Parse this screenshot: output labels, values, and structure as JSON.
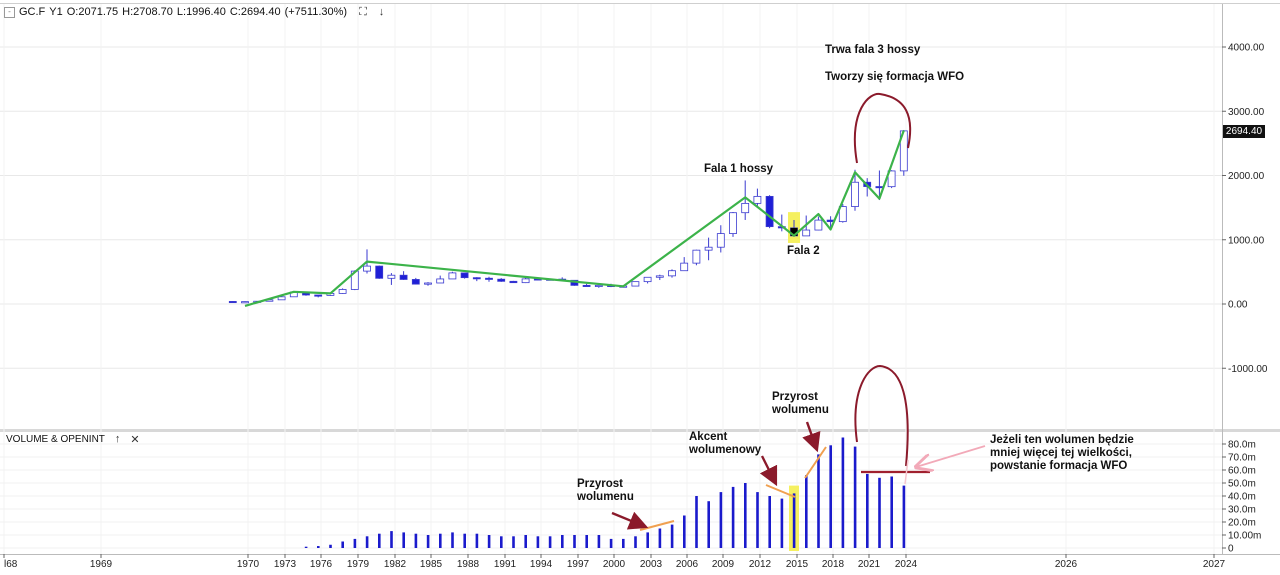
{
  "header": {
    "collapse_glyph": "-",
    "symbol": "GC.F",
    "interval": "Y1",
    "open": "O:2071.75",
    "high": "H:2708.70",
    "low": "L:1996.40",
    "close": "C:2694.40",
    "change": "(+7511.30%)",
    "expand_icon": "⛶",
    "menu_icon": "↓"
  },
  "volume_header": {
    "title": "VOLUME & OPENINT",
    "up_icon": "↑",
    "close_icon": "✕"
  },
  "annotations": {
    "wave3": "Trwa fala 3 hossy",
    "wfo": "Tworzy się formacja WFO",
    "wave1": "Fala 1 hossy",
    "wave2": "Fala 2",
    "vol_growth_1_l1": "Przyrost",
    "vol_growth_1_l2": "wolumenu",
    "vol_accent_l1": "Akcent",
    "vol_accent_l2": "wolumenowy",
    "vol_growth_2_l1": "Przyrost",
    "vol_growth_2_l2": "wolumenu",
    "condition_l1": "Jeżeli ten wolumen będzie",
    "condition_l2": "mniej więcej tej wielkości,",
    "condition_l3": "powstanie formacja WFO"
  },
  "last_price_label": "2694.40",
  "colors": {
    "up_candle": "#ffffff",
    "down_candle": "#1f1fd6",
    "candle_outline": "#3a3ad0",
    "volume_bar": "#1a1acc",
    "wave_line": "#3cb34a",
    "arc": "#8b1a2b",
    "arrow": "#8b1a2b",
    "trend_orange": "#f0a050",
    "highlight": "#f5f060",
    "pink_arrow": "#f2a9b8",
    "grid": "#e8e8e8",
    "axis_text": "#222222"
  },
  "chart_data": [
    {
      "type": "candlestick",
      "title": "GC.F Y1",
      "x_tick_labels": [
        "l68",
        "1969",
        "1970",
        "1973",
        "1976",
        "1979",
        "1982",
        "1985",
        "1988",
        "1991",
        "1994",
        "1997",
        "2000",
        "2003",
        "2006",
        "2009",
        "2012",
        "2015",
        "2018",
        "2021",
        "2024",
        "2026",
        "2027"
      ],
      "y_tick_labels": [
        "4000.00",
        "3000.00",
        "2000.00",
        "1000.00",
        "0.00",
        "-1000.00"
      ],
      "ylim": [
        -1300,
        4300
      ],
      "grid": true,
      "candles": [
        {
          "year": 1969,
          "o": 40,
          "h": 45,
          "l": 35,
          "c": 37
        },
        {
          "year": 1970,
          "o": 37,
          "h": 40,
          "l": 34,
          "c": 37
        },
        {
          "year": 1971,
          "o": 37,
          "h": 44,
          "l": 37,
          "c": 43
        },
        {
          "year": 1972,
          "o": 43,
          "h": 70,
          "l": 43,
          "c": 65
        },
        {
          "year": 1973,
          "o": 65,
          "h": 127,
          "l": 64,
          "c": 112
        },
        {
          "year": 1974,
          "o": 112,
          "h": 195,
          "l": 112,
          "c": 187
        },
        {
          "year": 1975,
          "o": 187,
          "h": 186,
          "l": 128,
          "c": 140
        },
        {
          "year": 1976,
          "o": 140,
          "h": 140,
          "l": 103,
          "c": 134
        },
        {
          "year": 1977,
          "o": 134,
          "h": 168,
          "l": 128,
          "c": 165
        },
        {
          "year": 1978,
          "o": 165,
          "h": 243,
          "l": 160,
          "c": 226
        },
        {
          "year": 1979,
          "o": 226,
          "h": 524,
          "l": 216,
          "c": 512
        },
        {
          "year": 1980,
          "o": 512,
          "h": 850,
          "l": 474,
          "c": 590
        },
        {
          "year": 1981,
          "o": 590,
          "h": 599,
          "l": 391,
          "c": 400
        },
        {
          "year": 1982,
          "o": 400,
          "h": 481,
          "l": 297,
          "c": 448
        },
        {
          "year": 1983,
          "o": 448,
          "h": 511,
          "l": 374,
          "c": 382
        },
        {
          "year": 1984,
          "o": 382,
          "h": 406,
          "l": 303,
          "c": 309
        },
        {
          "year": 1985,
          "o": 309,
          "h": 341,
          "l": 284,
          "c": 327
        },
        {
          "year": 1986,
          "o": 327,
          "h": 442,
          "l": 326,
          "c": 390
        },
        {
          "year": 1987,
          "o": 390,
          "h": 502,
          "l": 390,
          "c": 484
        },
        {
          "year": 1988,
          "o": 484,
          "h": 486,
          "l": 395,
          "c": 410
        },
        {
          "year": 1989,
          "o": 410,
          "h": 418,
          "l": 356,
          "c": 401
        },
        {
          "year": 1990,
          "o": 401,
          "h": 424,
          "l": 346,
          "c": 386
        },
        {
          "year": 1991,
          "o": 386,
          "h": 403,
          "l": 344,
          "c": 353
        },
        {
          "year": 1992,
          "o": 353,
          "h": 360,
          "l": 330,
          "c": 332
        },
        {
          "year": 1993,
          "o": 332,
          "h": 406,
          "l": 326,
          "c": 391
        },
        {
          "year": 1994,
          "o": 391,
          "h": 397,
          "l": 370,
          "c": 383
        },
        {
          "year": 1995,
          "o": 383,
          "h": 396,
          "l": 372,
          "c": 387
        },
        {
          "year": 1996,
          "o": 387,
          "h": 415,
          "l": 367,
          "c": 369
        },
        {
          "year": 1997,
          "o": 369,
          "h": 367,
          "l": 283,
          "c": 290
        },
        {
          "year": 1998,
          "o": 290,
          "h": 313,
          "l": 273,
          "c": 288
        },
        {
          "year": 1999,
          "o": 288,
          "h": 326,
          "l": 252,
          "c": 290
        },
        {
          "year": 2000,
          "o": 290,
          "h": 316,
          "l": 263,
          "c": 273
        },
        {
          "year": 2001,
          "o": 273,
          "h": 293,
          "l": 255,
          "c": 279
        },
        {
          "year": 2002,
          "o": 279,
          "h": 349,
          "l": 277,
          "c": 348
        },
        {
          "year": 2003,
          "o": 348,
          "h": 417,
          "l": 320,
          "c": 416
        },
        {
          "year": 2004,
          "o": 416,
          "h": 456,
          "l": 373,
          "c": 438
        },
        {
          "year": 2005,
          "o": 438,
          "h": 538,
          "l": 411,
          "c": 518
        },
        {
          "year": 2006,
          "o": 518,
          "h": 730,
          "l": 518,
          "c": 636
        },
        {
          "year": 2007,
          "o": 636,
          "h": 845,
          "l": 603,
          "c": 838
        },
        {
          "year": 2008,
          "o": 838,
          "h": 1033,
          "l": 681,
          "c": 884
        },
        {
          "year": 2009,
          "o": 884,
          "h": 1226,
          "l": 802,
          "c": 1096
        },
        {
          "year": 2010,
          "o": 1096,
          "h": 1431,
          "l": 1045,
          "c": 1421
        },
        {
          "year": 2011,
          "o": 1421,
          "h": 1923,
          "l": 1308,
          "c": 1566
        },
        {
          "year": 2012,
          "o": 1566,
          "h": 1796,
          "l": 1527,
          "c": 1675
        },
        {
          "year": 2013,
          "o": 1675,
          "h": 1694,
          "l": 1180,
          "c": 1204
        },
        {
          "year": 2014,
          "o": 1204,
          "h": 1392,
          "l": 1131,
          "c": 1184
        },
        {
          "year": 2015,
          "o": 1184,
          "h": 1308,
          "l": 1046,
          "c": 1060
        },
        {
          "year": 2016,
          "o": 1060,
          "h": 1377,
          "l": 1061,
          "c": 1151
        },
        {
          "year": 2017,
          "o": 1151,
          "h": 1362,
          "l": 1146,
          "c": 1306
        },
        {
          "year": 2018,
          "o": 1306,
          "h": 1366,
          "l": 1167,
          "c": 1282
        },
        {
          "year": 2019,
          "o": 1282,
          "h": 1557,
          "l": 1266,
          "c": 1517
        },
        {
          "year": 2020,
          "o": 1517,
          "h": 2089,
          "l": 1451,
          "c": 1895
        },
        {
          "year": 2021,
          "o": 1895,
          "h": 1959,
          "l": 1673,
          "c": 1828
        },
        {
          "year": 2022,
          "o": 1828,
          "h": 2078,
          "l": 1618,
          "c": 1826
        },
        {
          "year": 2023,
          "o": 1826,
          "h": 2083,
          "l": 1804,
          "c": 2071
        },
        {
          "year": 2024,
          "o": 2071.75,
          "h": 2708.7,
          "l": 1996.4,
          "c": 2694.4
        }
      ],
      "wave_line": [
        {
          "year": 1970,
          "value": -30
        },
        {
          "year": 1974,
          "value": 190
        },
        {
          "year": 1977,
          "value": 165
        },
        {
          "year": 1980,
          "value": 660
        },
        {
          "year": 2001,
          "value": 275
        },
        {
          "year": 2011,
          "value": 1660
        },
        {
          "year": 2015,
          "value": 1065
        },
        {
          "year": 2017,
          "value": 1400
        },
        {
          "year": 2018,
          "value": 1160
        },
        {
          "year": 2020,
          "value": 2050
        },
        {
          "year": 2022,
          "value": 1640
        },
        {
          "year": 2024,
          "value": 2700
        }
      ]
    },
    {
      "type": "bar",
      "title": "VOLUME & OPENINT",
      "y_tick_labels": [
        "80.0m",
        "70.0m",
        "60.0m",
        "50.0m",
        "40.0m",
        "30.0m",
        "20.0m",
        "10.00m",
        "0"
      ],
      "ylim": [
        0,
        85
      ],
      "years": [
        1975,
        1976,
        1977,
        1978,
        1979,
        1980,
        1981,
        1982,
        1983,
        1984,
        1985,
        1986,
        1987,
        1988,
        1989,
        1990,
        1991,
        1992,
        1993,
        1994,
        1995,
        1996,
        1997,
        1998,
        1999,
        2000,
        2001,
        2002,
        2003,
        2004,
        2005,
        2006,
        2007,
        2008,
        2009,
        2010,
        2011,
        2012,
        2013,
        2014,
        2015,
        2016,
        2017,
        2018,
        2019,
        2020,
        2021,
        2022,
        2023,
        2024
      ],
      "values": [
        1,
        1.5,
        2.5,
        5,
        7,
        9,
        11,
        13,
        12,
        11,
        10,
        11,
        12,
        11,
        11,
        10,
        9,
        9,
        10,
        9,
        9,
        10,
        10,
        10,
        10,
        7,
        7,
        9,
        12,
        15,
        18,
        25,
        40,
        36,
        43,
        47,
        50,
        43,
        40,
        38,
        42,
        56,
        72,
        79,
        85,
        78,
        57,
        54,
        55,
        48
      ]
    }
  ]
}
